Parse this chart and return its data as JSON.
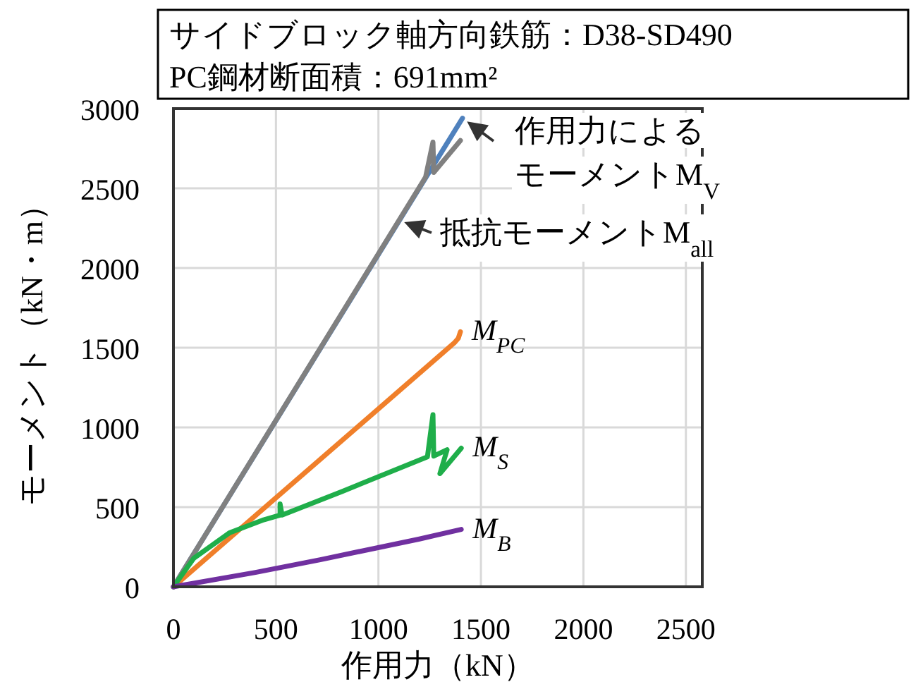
{
  "chart_data": {
    "type": "line",
    "title": "サイドブロック軸方向鉄筋：D38-SD490",
    "subtitle": "PC鋼材断面積：691mm²",
    "xlabel": "作用力（kN）",
    "ylabel": "モーメント（kN・m）",
    "xlim": [
      0,
      2580
    ],
    "ylim": [
      0,
      3000
    ],
    "xticks": [
      0,
      500,
      1000,
      1500,
      2000,
      2500
    ],
    "yticks": [
      0,
      500,
      1000,
      1500,
      2000,
      2500,
      3000
    ],
    "grid": true,
    "line_style": "solid",
    "series": [
      {
        "color": "#4f81bd",
        "x": [
          0,
          1410
        ],
        "values": [
          0,
          2940
        ]
      },
      {
        "color": "#808080",
        "x": [
          0,
          1230,
          1266,
          1270,
          1400
        ],
        "values": [
          0,
          2570,
          2790,
          2600,
          2800
        ]
      },
      {
        "name": "M$_{PC}$",
        "color": "#f07f2a",
        "x": [
          0,
          1370,
          1390,
          1400
        ],
        "values": [
          0,
          1530,
          1560,
          1600
        ]
      },
      {
        "name": "M$_{S}$",
        "color": "#1fae4a",
        "x": [
          0,
          100,
          275,
          440,
          520,
          520,
          530,
          826,
          1239,
          1266,
          1270,
          1335,
          1300,
          1404
        ],
        "values": [
          0,
          180,
          340,
          420,
          450,
          520,
          450,
          600,
          815,
          1080,
          820,
          860,
          710,
          870
        ]
      },
      {
        "name": "M$_{B}$",
        "color": "#7030a0",
        "x": [
          0,
          400,
          716,
          1200,
          1404
        ],
        "values": [
          0,
          90,
          170,
          300,
          360
        ]
      }
    ],
    "annotations": [
      {
        "text": "作用力によるモーメントM$_{V}$",
        "x": 1410,
        "y": 2940
      },
      {
        "text": "抵抗モーメントM$_{all}$",
        "x": 1100,
        "y": 2300
      }
    ]
  }
}
